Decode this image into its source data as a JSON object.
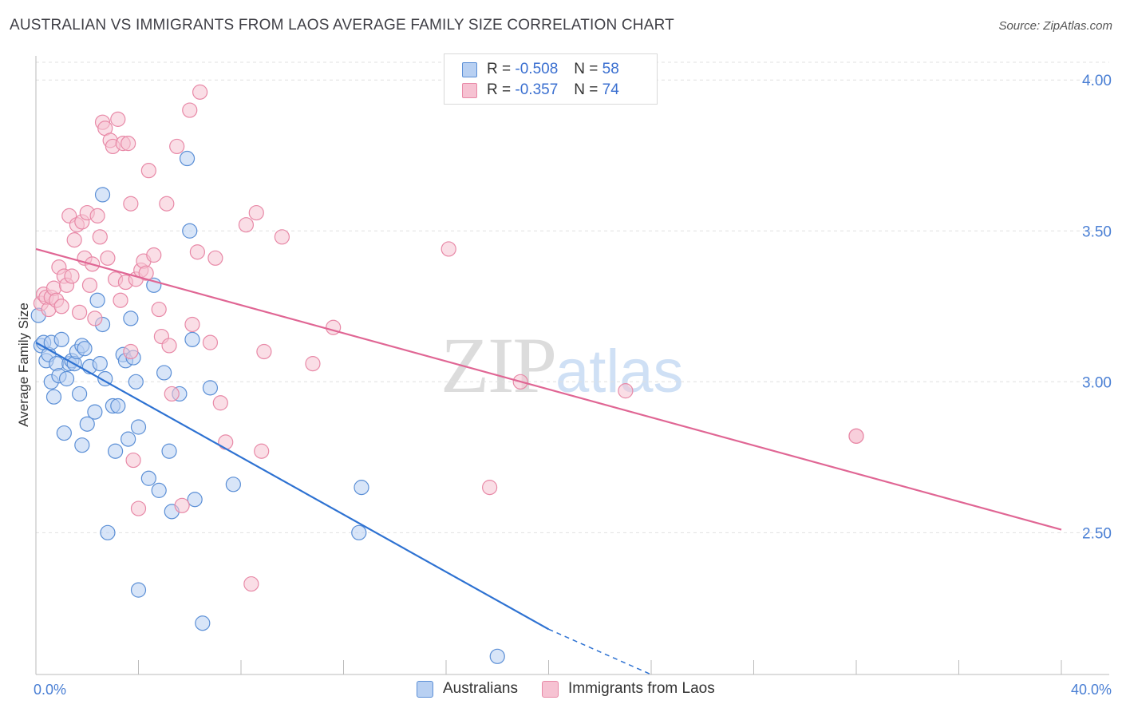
{
  "title": "AUSTRALIAN VS IMMIGRANTS FROM LAOS AVERAGE FAMILY SIZE CORRELATION CHART",
  "source": "Source: ZipAtlas.com",
  "watermark": {
    "zip": "ZIP",
    "atlas": "atlas"
  },
  "legend": {
    "rows": [
      {
        "r_label": "R =",
        "r_value": "-0.508",
        "n_label": "N =",
        "n_value": "58"
      },
      {
        "r_label": "R =",
        "r_value": "-0.357",
        "n_label": "N =",
        "n_value": "74"
      }
    ]
  },
  "bottom_legend": [
    "Australians",
    "Immigrants from Laos"
  ],
  "colors": {
    "blue_fill": "#b8d0f2",
    "blue_stroke": "#5b8fd6",
    "blue_line": "#2e72d2",
    "pink_fill": "#f6c2d2",
    "pink_stroke": "#e889a7",
    "pink_line": "#e06694",
    "grid": "#e0e0e0",
    "axis_text": "#4a7fd4"
  },
  "chart_data": {
    "type": "scatter",
    "title": "AUSTRALIAN VS IMMIGRANTS FROM LAOS AVERAGE FAMILY SIZE CORRELATION CHART",
    "xlabel": "",
    "ylabel": "Average Family Size",
    "xlim": [
      0,
      40
    ],
    "ylim": [
      2.03,
      4.08
    ],
    "x_tick_labels": [
      "0.0%",
      "40.0%"
    ],
    "y_ticks": [
      2.5,
      3.0,
      3.5,
      4.0
    ],
    "y_tick_labels": [
      "2.50",
      "3.00",
      "3.50",
      "4.00"
    ],
    "grid": true,
    "series": [
      {
        "name": "Australians",
        "r": -0.508,
        "n": 58,
        "trend": {
          "x0": 0,
          "y0": 3.13,
          "x1": 20,
          "y1": 2.18,
          "dash_to_x": 24,
          "dash_to_y": 2.03
        },
        "points": [
          [
            0.1,
            3.22
          ],
          [
            0.2,
            3.12
          ],
          [
            0.3,
            3.13
          ],
          [
            0.4,
            3.07
          ],
          [
            0.5,
            3.09
          ],
          [
            0.6,
            3.13
          ],
          [
            0.6,
            3.0
          ],
          [
            0.7,
            2.95
          ],
          [
            0.8,
            3.06
          ],
          [
            0.9,
            3.02
          ],
          [
            1.0,
            3.14
          ],
          [
            1.1,
            2.83
          ],
          [
            1.2,
            3.01
          ],
          [
            1.3,
            3.06
          ],
          [
            1.4,
            3.07
          ],
          [
            1.5,
            3.06
          ],
          [
            1.6,
            3.1
          ],
          [
            1.7,
            2.96
          ],
          [
            1.8,
            3.12
          ],
          [
            1.8,
            2.79
          ],
          [
            1.9,
            3.11
          ],
          [
            2.0,
            2.86
          ],
          [
            2.1,
            3.05
          ],
          [
            2.3,
            2.9
          ],
          [
            2.4,
            3.27
          ],
          [
            2.5,
            3.06
          ],
          [
            2.6,
            3.62
          ],
          [
            2.6,
            3.19
          ],
          [
            2.7,
            3.01
          ],
          [
            2.8,
            2.5
          ],
          [
            3.0,
            2.92
          ],
          [
            3.1,
            2.77
          ],
          [
            3.2,
            2.92
          ],
          [
            3.4,
            3.09
          ],
          [
            3.5,
            3.07
          ],
          [
            3.6,
            2.81
          ],
          [
            3.7,
            3.21
          ],
          [
            3.8,
            3.08
          ],
          [
            3.9,
            3.0
          ],
          [
            4.0,
            2.85
          ],
          [
            4.0,
            2.31
          ],
          [
            4.4,
            2.68
          ],
          [
            4.6,
            3.32
          ],
          [
            4.8,
            2.64
          ],
          [
            5.0,
            3.03
          ],
          [
            5.2,
            2.77
          ],
          [
            5.3,
            2.57
          ],
          [
            5.6,
            2.96
          ],
          [
            5.9,
            3.74
          ],
          [
            6.0,
            3.5
          ],
          [
            6.1,
            3.14
          ],
          [
            6.2,
            2.61
          ],
          [
            6.5,
            2.2
          ],
          [
            6.8,
            2.98
          ],
          [
            7.7,
            2.66
          ],
          [
            12.6,
            2.5
          ],
          [
            12.7,
            2.65
          ],
          [
            18.0,
            2.09
          ]
        ]
      },
      {
        "name": "Immigrants from Laos",
        "r": -0.357,
        "n": 74,
        "trend": {
          "x0": 0,
          "y0": 3.44,
          "x1": 40,
          "y1": 2.51
        },
        "points": [
          [
            0.2,
            3.26
          ],
          [
            0.3,
            3.29
          ],
          [
            0.4,
            3.28
          ],
          [
            0.5,
            3.24
          ],
          [
            0.6,
            3.28
          ],
          [
            0.7,
            3.31
          ],
          [
            0.8,
            3.27
          ],
          [
            0.9,
            3.38
          ],
          [
            1.0,
            3.25
          ],
          [
            1.1,
            3.35
          ],
          [
            1.2,
            3.32
          ],
          [
            1.3,
            3.55
          ],
          [
            1.4,
            3.35
          ],
          [
            1.5,
            3.47
          ],
          [
            1.6,
            3.52
          ],
          [
            1.7,
            3.23
          ],
          [
            1.8,
            3.53
          ],
          [
            1.9,
            3.41
          ],
          [
            2.0,
            3.56
          ],
          [
            2.1,
            3.32
          ],
          [
            2.2,
            3.39
          ],
          [
            2.3,
            3.21
          ],
          [
            2.4,
            3.55
          ],
          [
            2.5,
            3.48
          ],
          [
            2.6,
            3.86
          ],
          [
            2.7,
            3.84
          ],
          [
            2.8,
            3.41
          ],
          [
            2.9,
            3.8
          ],
          [
            3.0,
            3.78
          ],
          [
            3.1,
            3.34
          ],
          [
            3.2,
            3.87
          ],
          [
            3.3,
            3.27
          ],
          [
            3.4,
            3.79
          ],
          [
            3.5,
            3.33
          ],
          [
            3.6,
            3.79
          ],
          [
            3.7,
            3.59
          ],
          [
            3.7,
            3.1
          ],
          [
            3.8,
            2.74
          ],
          [
            3.9,
            3.34
          ],
          [
            4.0,
            2.58
          ],
          [
            4.1,
            3.37
          ],
          [
            4.2,
            3.4
          ],
          [
            4.3,
            3.36
          ],
          [
            4.4,
            3.7
          ],
          [
            4.6,
            3.42
          ],
          [
            4.8,
            3.24
          ],
          [
            4.9,
            3.15
          ],
          [
            5.1,
            3.59
          ],
          [
            5.2,
            3.12
          ],
          [
            5.3,
            2.96
          ],
          [
            5.5,
            3.78
          ],
          [
            5.7,
            2.59
          ],
          [
            6.0,
            3.9
          ],
          [
            6.1,
            3.19
          ],
          [
            6.3,
            3.43
          ],
          [
            6.4,
            3.96
          ],
          [
            6.8,
            3.13
          ],
          [
            7.0,
            3.41
          ],
          [
            7.2,
            2.93
          ],
          [
            7.4,
            2.8
          ],
          [
            8.2,
            3.52
          ],
          [
            8.4,
            2.33
          ],
          [
            8.6,
            3.56
          ],
          [
            8.8,
            2.77
          ],
          [
            8.9,
            3.1
          ],
          [
            9.6,
            3.48
          ],
          [
            10.8,
            3.06
          ],
          [
            11.6,
            3.18
          ],
          [
            16.1,
            3.44
          ],
          [
            17.7,
            2.65
          ],
          [
            18.9,
            3.0
          ],
          [
            23.0,
            2.97
          ],
          [
            32.0,
            2.82
          ],
          [
            32.0,
            2.82
          ]
        ]
      }
    ]
  }
}
